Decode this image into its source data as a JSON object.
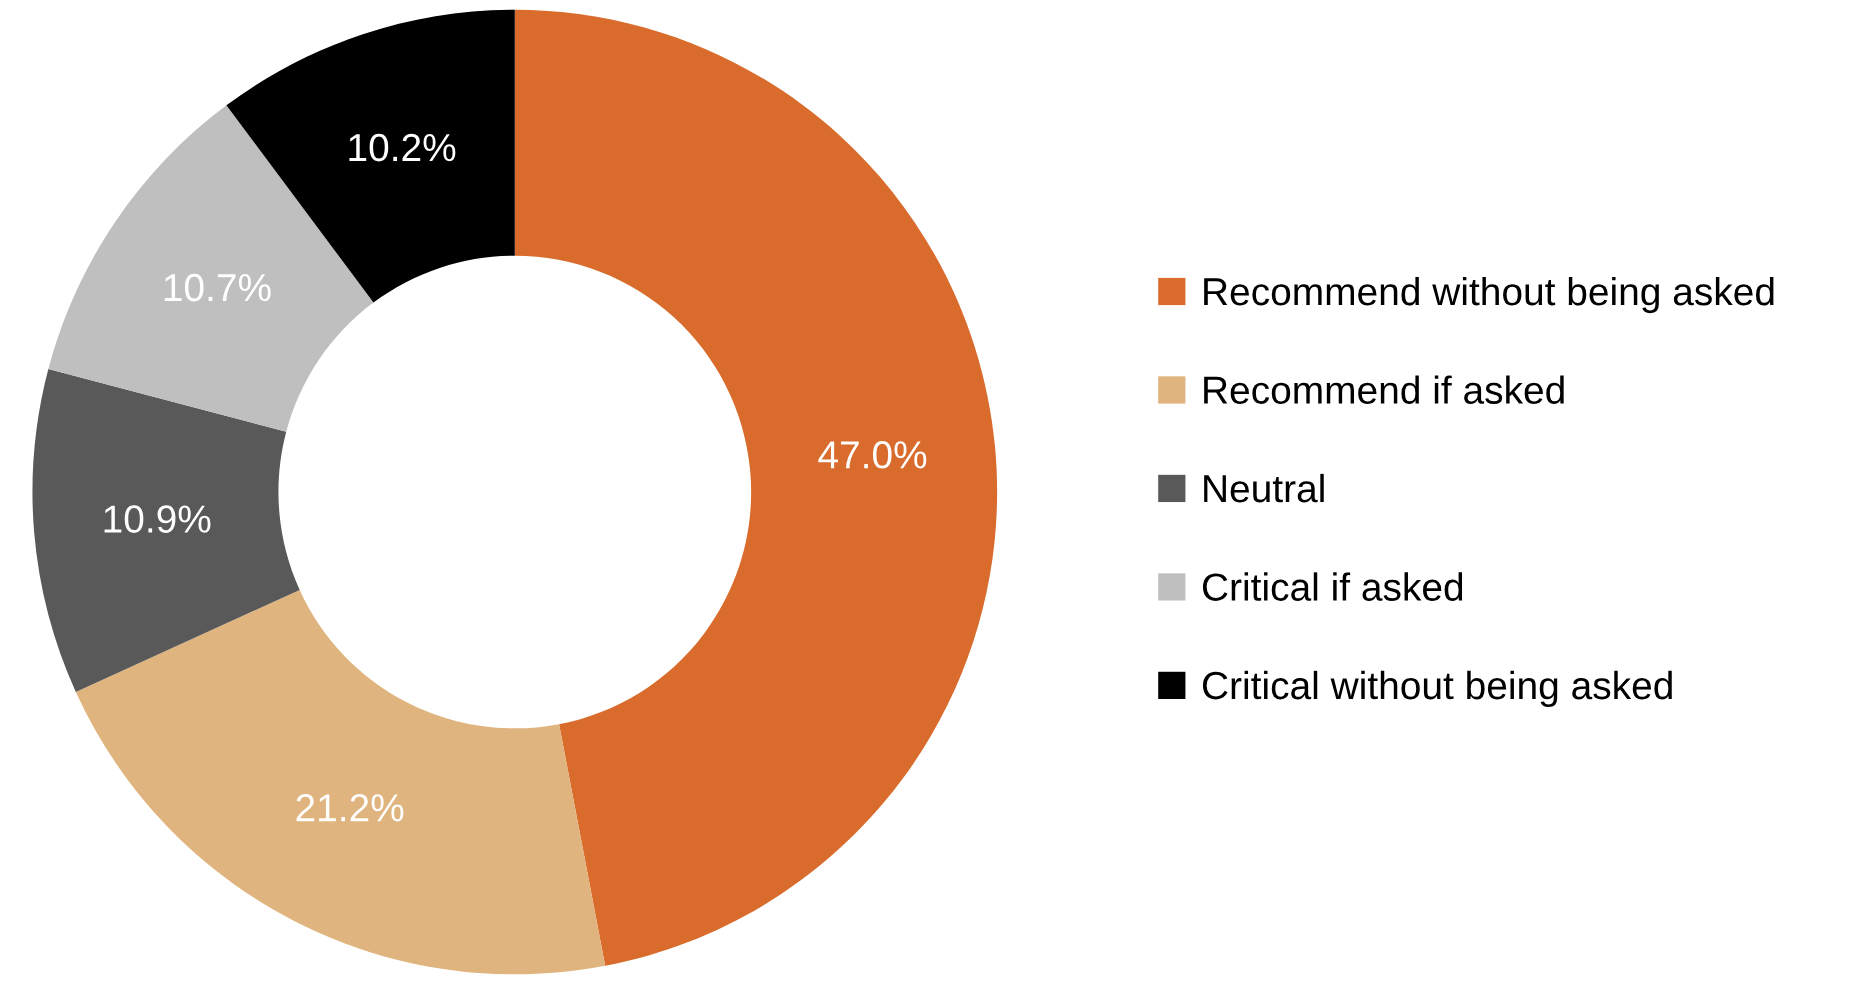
{
  "chart_data": {
    "type": "donut",
    "categories": [
      "Recommend without being asked",
      "Recommend if asked",
      "Neutral",
      "Critical if asked",
      "Critical without being asked"
    ],
    "values": [
      47.0,
      21.2,
      10.9,
      10.7,
      10.2
    ],
    "colors": [
      "#d96c2c",
      "#e0b47e",
      "#595959",
      "#bfbfbf",
      "#000000"
    ],
    "value_labels": [
      "47.0%",
      "21.2%",
      "10.9%",
      "10.7%",
      "10.2%"
    ],
    "legend": "right"
  }
}
